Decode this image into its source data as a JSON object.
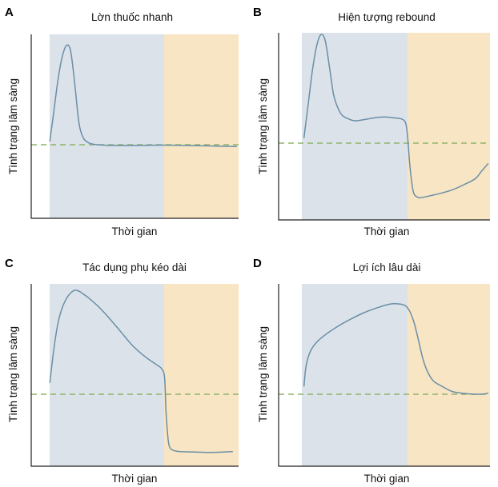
{
  "colors": {
    "treatment_band": "#dbe2ea",
    "after_band": "#f8e5c4",
    "curve": "#6a8fa6",
    "baseline": "#8fb36a",
    "axis": "#222222"
  },
  "chart_data": [
    {
      "letter": "A",
      "title": "Lờn thuốc nhanh",
      "type": "line",
      "xlabel": "Thời gian",
      "ylabel": "Tình trạng lâm sàng",
      "xlim": [
        0,
        1
      ],
      "ylim": [
        0,
        1
      ],
      "baseline": 0.4,
      "treatment_span": [
        0.09,
        0.64
      ],
      "after_span": [
        0.64,
        1.0
      ],
      "series": [
        {
          "x": [
            0.09,
            0.11,
            0.13,
            0.15,
            0.17,
            0.19,
            0.21,
            0.23,
            0.25,
            0.27,
            0.29,
            0.32,
            0.37,
            0.45,
            0.55,
            0.64,
            0.8,
            0.99
          ],
          "y": [
            0.42,
            0.59,
            0.76,
            0.88,
            0.94,
            0.91,
            0.73,
            0.52,
            0.44,
            0.415,
            0.405,
            0.4,
            0.397,
            0.396,
            0.397,
            0.398,
            0.395,
            0.39
          ]
        }
      ]
    },
    {
      "letter": "B",
      "title": "Hiện tượng rebound",
      "type": "line",
      "xlabel": "Thời gian",
      "ylabel": "Tình trạng lâm sàng",
      "xlim": [
        0,
        1
      ],
      "ylim": [
        0,
        1
      ],
      "baseline": 0.41,
      "treatment_span": [
        0.12,
        0.6
      ],
      "after_span": [
        0.6,
        1.0
      ],
      "series": [
        {
          "x": [
            0.12,
            0.14,
            0.16,
            0.18,
            0.2,
            0.22,
            0.24,
            0.26,
            0.28,
            0.3,
            0.33,
            0.36,
            0.4,
            0.45,
            0.5,
            0.55,
            0.58,
            0.6,
            0.61,
            0.62,
            0.63,
            0.64,
            0.66,
            0.68,
            0.7,
            0.72,
            0.76,
            0.82,
            0.88,
            0.93,
            0.96,
            0.99
          ],
          "y": [
            0.44,
            0.62,
            0.8,
            0.93,
            0.99,
            0.96,
            0.82,
            0.67,
            0.6,
            0.56,
            0.54,
            0.53,
            0.535,
            0.545,
            0.55,
            0.545,
            0.54,
            0.52,
            0.45,
            0.3,
            0.2,
            0.14,
            0.12,
            0.12,
            0.125,
            0.13,
            0.14,
            0.16,
            0.19,
            0.22,
            0.26,
            0.3
          ]
        }
      ]
    },
    {
      "letter": "C",
      "title": "Tác dụng phụ kéo dài",
      "type": "line",
      "xlabel": "Thời gian",
      "ylabel": "Tình trạng lâm sàng",
      "xlim": [
        0,
        1
      ],
      "ylim": [
        0,
        1
      ],
      "baseline": 0.4,
      "treatment_span": [
        0.09,
        0.64
      ],
      "after_span": [
        0.64,
        1.0
      ],
      "series": [
        {
          "x": [
            0.09,
            0.11,
            0.13,
            0.15,
            0.17,
            0.19,
            0.21,
            0.23,
            0.25,
            0.28,
            0.32,
            0.37,
            0.43,
            0.49,
            0.55,
            0.6,
            0.625,
            0.64,
            0.645,
            0.65,
            0.66,
            0.67,
            0.69,
            0.72,
            0.78,
            0.86,
            0.93,
            0.97
          ],
          "y": [
            0.46,
            0.65,
            0.79,
            0.87,
            0.92,
            0.95,
            0.965,
            0.96,
            0.945,
            0.92,
            0.88,
            0.82,
            0.74,
            0.66,
            0.6,
            0.56,
            0.54,
            0.51,
            0.45,
            0.3,
            0.15,
            0.1,
            0.085,
            0.08,
            0.078,
            0.076,
            0.078,
            0.08
          ]
        }
      ]
    },
    {
      "letter": "D",
      "title": "Lợi ích lâu dài",
      "type": "line",
      "xlabel": "Thời gian",
      "ylabel": "Tình trạng lâm sàng",
      "xlim": [
        0,
        1
      ],
      "ylim": [
        0,
        1
      ],
      "baseline": 0.4,
      "treatment_span": [
        0.12,
        0.6
      ],
      "after_span": [
        0.6,
        1.0
      ],
      "series": [
        {
          "x": [
            0.12,
            0.13,
            0.15,
            0.18,
            0.22,
            0.27,
            0.33,
            0.4,
            0.47,
            0.53,
            0.57,
            0.6,
            0.62,
            0.64,
            0.66,
            0.68,
            0.7,
            0.73,
            0.77,
            0.82,
            0.87,
            0.92,
            0.96,
            0.99
          ],
          "y": [
            0.44,
            0.55,
            0.63,
            0.68,
            0.72,
            0.76,
            0.8,
            0.84,
            0.87,
            0.89,
            0.89,
            0.88,
            0.85,
            0.79,
            0.7,
            0.6,
            0.53,
            0.47,
            0.44,
            0.41,
            0.4,
            0.395,
            0.395,
            0.4
          ]
        }
      ]
    }
  ]
}
